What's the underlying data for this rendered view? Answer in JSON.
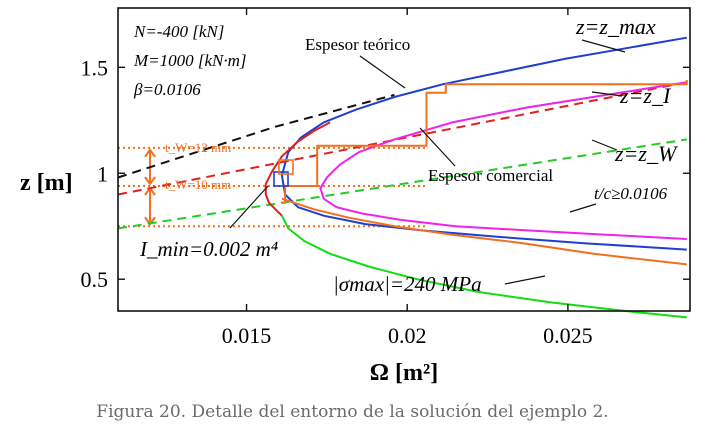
{
  "chart_data": {
    "type": "line",
    "xlabel": "Ω [m²]",
    "ylabel": "z [m]",
    "xlim": [
      0.011,
      0.0288
    ],
    "ylim": [
      0.35,
      1.78
    ],
    "xticks": [
      0.015,
      0.02,
      0.025
    ],
    "xtick_labels": [
      "0.015",
      "0.02",
      "0.025"
    ],
    "yticks": [
      0.5,
      1,
      1.5
    ],
    "ytick_labels": [
      "0.5",
      "1",
      "1.5"
    ],
    "grid": false,
    "params": {
      "N": "N=-400 [kN]",
      "M": "M=1000 [kN·m]",
      "beta": "β=0.0106"
    },
    "series": [
      {
        "name": "z=z_max",
        "color": "#1f3fd0",
        "style": "solid",
        "x": [
          0.0287,
          0.0268,
          0.0249,
          0.023,
          0.0211,
          0.0196,
          0.0184,
          0.0174,
          0.0167,
          0.0163,
          0.0161,
          0.0162,
          0.0166,
          0.0174,
          0.0187,
          0.0205,
          0.0228,
          0.0255,
          0.0287
        ],
        "y": [
          1.64,
          1.59,
          1.54,
          1.48,
          1.42,
          1.36,
          1.3,
          1.24,
          1.17,
          1.1,
          0.99,
          0.9,
          0.84,
          0.8,
          0.76,
          0.73,
          0.7,
          0.67,
          0.64
        ]
      },
      {
        "name": "z=z_I",
        "color": "#e02020",
        "style": "dashed",
        "x": [
          0.011,
          0.0287
        ],
        "y": [
          0.9,
          1.43
        ]
      },
      {
        "name": "z=z_W",
        "color": "#22cc22",
        "style": "dashed",
        "x": [
          0.011,
          0.0287
        ],
        "y": [
          0.74,
          1.16
        ]
      },
      {
        "name": "black-dashed",
        "color": "#111111",
        "style": "dashed",
        "x": [
          0.011,
          0.0159,
          0.0196
        ],
        "y": [
          0.98,
          1.22,
          1.37
        ]
      },
      {
        "name": "t/c≥0.0106",
        "color": "#ee22ee",
        "style": "solid",
        "x": [
          0.0287,
          0.0262,
          0.0237,
          0.0214,
          0.0196,
          0.0185,
          0.0179,
          0.0175,
          0.0173,
          0.0174,
          0.0178,
          0.0186,
          0.0198,
          0.0215,
          0.0238,
          0.0262,
          0.0287
        ],
        "y": [
          1.43,
          1.37,
          1.31,
          1.24,
          1.16,
          1.1,
          1.04,
          0.98,
          0.93,
          0.88,
          0.84,
          0.81,
          0.78,
          0.75,
          0.73,
          0.71,
          0.69
        ]
      },
      {
        "name": "|σmax|=240 MPa",
        "color": "#11dd11",
        "style": "solid",
        "x": [
          0.0161,
          0.0163,
          0.0168,
          0.0176,
          0.0188,
          0.0203,
          0.0222,
          0.0245,
          0.0268,
          0.0287
        ],
        "y": [
          0.8,
          0.74,
          0.68,
          0.62,
          0.56,
          0.5,
          0.44,
          0.39,
          0.35,
          0.32
        ]
      },
      {
        "name": "I_min=0.002 m⁴",
        "color": "#e02020",
        "style": "solid",
        "x": [
          0.0176,
          0.0171,
          0.0166,
          0.0161,
          0.0158,
          0.0156,
          0.0156,
          0.0157,
          0.0159,
          0.0161
        ],
        "y": [
          1.24,
          1.2,
          1.15,
          1.08,
          1.01,
          0.95,
          0.9,
          0.86,
          0.83,
          0.8
        ]
      },
      {
        "name": "Espesor comercial",
        "color": "#f07020",
        "style": "solid",
        "x": [
          0.0161,
          0.0162,
          0.0162,
          0.0172,
          0.0172,
          0.0206,
          0.0206,
          0.0212,
          0.0212,
          0.0287,
          0.0287
        ],
        "y": [
          0.86,
          0.86,
          0.94,
          0.94,
          1.13,
          1.13,
          1.38,
          1.38,
          1.42,
          1.42,
          1.44
        ]
      },
      {
        "name": "Espesor comercial-lower",
        "color": "#f07020",
        "style": "solid",
        "x": [
          0.0161,
          0.0171,
          0.0182,
          0.0196,
          0.0214,
          0.0236,
          0.0258,
          0.0287
        ],
        "y": [
          0.88,
          0.83,
          0.79,
          0.75,
          0.71,
          0.67,
          0.62,
          0.57
        ]
      }
    ],
    "guides_y": [
      1.12,
      0.94,
      0.75
    ],
    "annotations": {
      "zmax": "z=z_max",
      "zI": "z=z_I",
      "zW": "z=z_W",
      "teorico": "Espesor teórico",
      "comercial": "Espesor comercial",
      "tc": "t/c≥0.0106",
      "imin": "I_min=0.002 m⁴",
      "sigma": "|σmax|=240 MPa",
      "tw12": "t_W=12 mm",
      "tw10": "t_W=10 mm"
    }
  },
  "caption": "Figura 20. Detalle del entorno de la solución del ejemplo 2."
}
